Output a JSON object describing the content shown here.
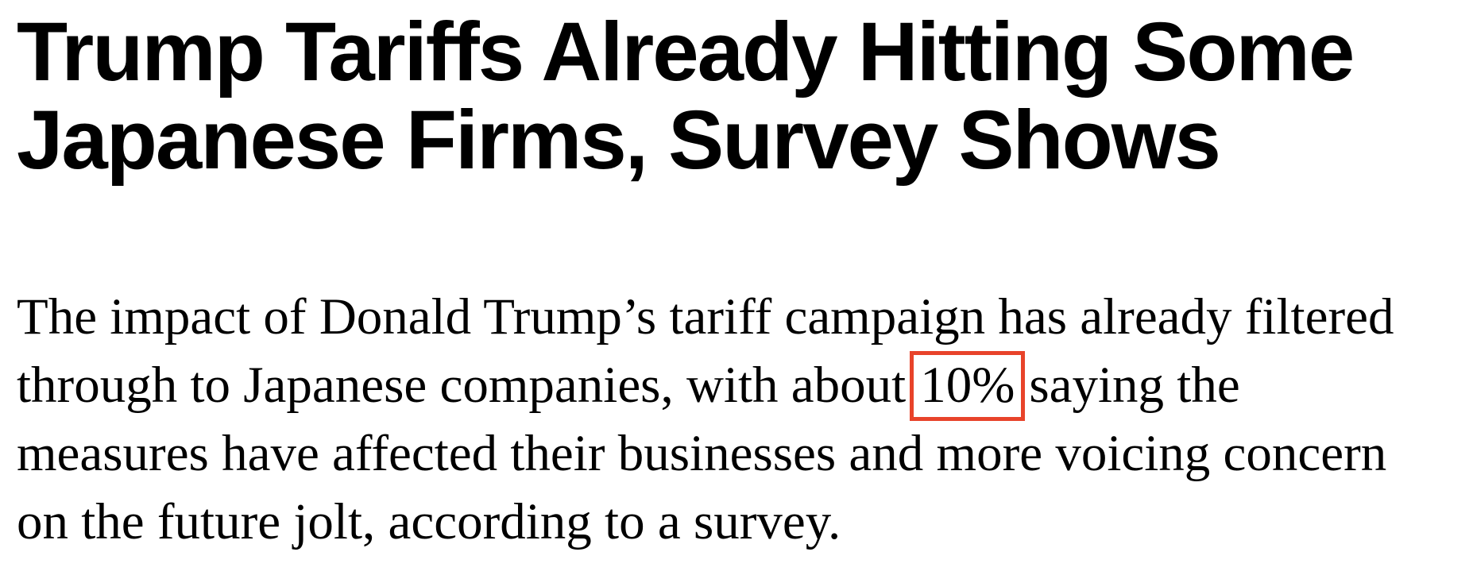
{
  "article": {
    "headline": {
      "line1": "Trump Tariffs Already Hitting Some",
      "line2": "Japanese Firms, Survey Shows"
    },
    "body": {
      "line1": "The impact of Donald Trump’s tariff campaign has already filtered",
      "line2_before": "through to Japanese companies, with about",
      "line2_highlight": "10%",
      "line2_after": "saying the",
      "line3": "measures have affected their businesses and more voicing concern",
      "line4": "on the future jolt, according to a survey."
    },
    "annotation": {
      "highlight_box_color": "#e8432a",
      "text_color": "#000000",
      "background_color": "#ffffff"
    }
  }
}
